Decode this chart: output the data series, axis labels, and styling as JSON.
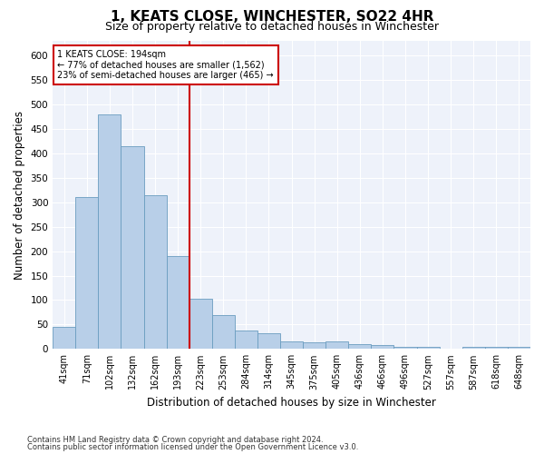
{
  "title": "1, KEATS CLOSE, WINCHESTER, SO22 4HR",
  "subtitle": "Size of property relative to detached houses in Winchester",
  "xlabel": "Distribution of detached houses by size in Winchester",
  "ylabel": "Number of detached properties",
  "categories": [
    "41sqm",
    "71sqm",
    "102sqm",
    "132sqm",
    "162sqm",
    "193sqm",
    "223sqm",
    "253sqm",
    "284sqm",
    "314sqm",
    "345sqm",
    "375sqm",
    "405sqm",
    "436sqm",
    "466sqm",
    "496sqm",
    "527sqm",
    "557sqm",
    "587sqm",
    "618sqm",
    "648sqm"
  ],
  "values": [
    45,
    310,
    480,
    415,
    315,
    190,
    103,
    70,
    38,
    32,
    15,
    13,
    15,
    10,
    8,
    5,
    5,
    0,
    5,
    5,
    5
  ],
  "bar_color": "#b8cfe8",
  "bar_edge_color": "#6a9cc0",
  "annotation_box_color": "#cc0000",
  "vline_color": "#cc0000",
  "vline_x": 5.5,
  "annotation_line1": "1 KEATS CLOSE: 194sqm",
  "annotation_line2": "← 77% of detached houses are smaller (1,562)",
  "annotation_line3": "23% of semi-detached houses are larger (465) →",
  "footnote1": "Contains HM Land Registry data © Crown copyright and database right 2024.",
  "footnote2": "Contains public sector information licensed under the Open Government Licence v3.0.",
  "ylim": [
    0,
    630
  ],
  "yticks": [
    0,
    50,
    100,
    150,
    200,
    250,
    300,
    350,
    400,
    450,
    500,
    550,
    600
  ],
  "title_fontsize": 11,
  "subtitle_fontsize": 9,
  "tick_fontsize": 7,
  "ylabel_fontsize": 8.5,
  "xlabel_fontsize": 8.5,
  "bg_color": "#eef2fa"
}
